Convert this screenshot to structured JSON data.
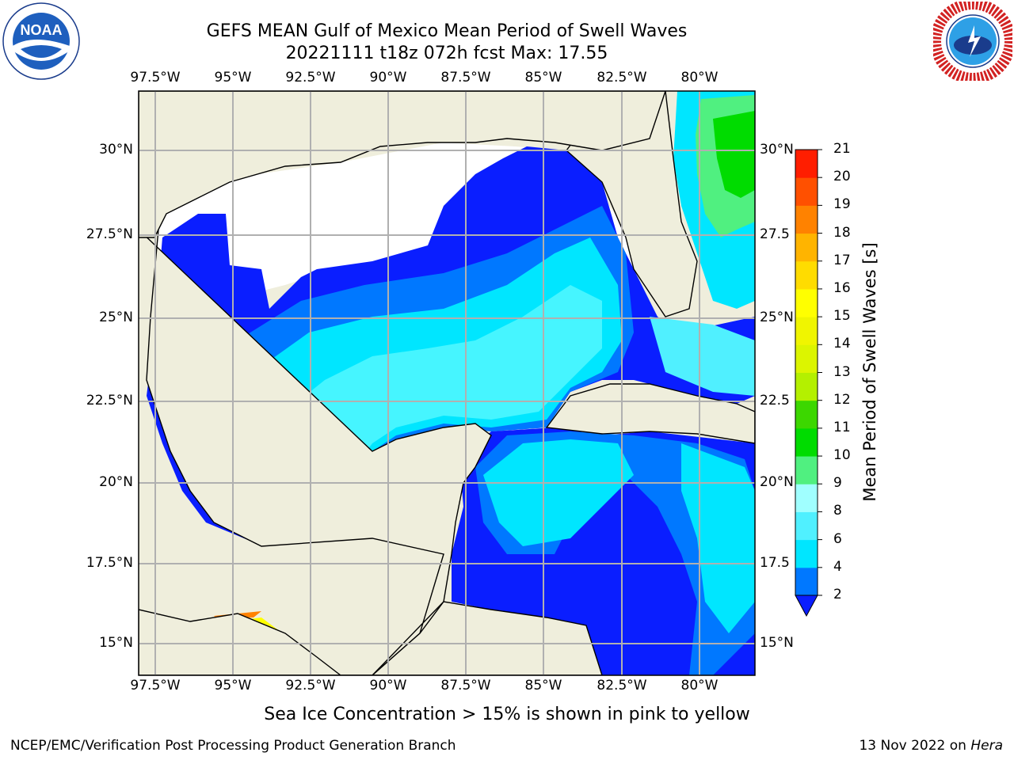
{
  "header": {
    "title_line1": "GEFS MEAN Gulf of Mexico Mean Period of Swell Waves",
    "title_line2": "20221111 t18z 072h fcst   Max: 17.55"
  },
  "logos": {
    "left": "noaa-logo",
    "right": "national-weather-service-logo"
  },
  "map": {
    "lon_ticks_top": [
      "97.5°W",
      "95°W",
      "92.5°W",
      "90°W",
      "87.5°W",
      "85°W",
      "82.5°W",
      "80°W"
    ],
    "lon_ticks_bottom": [
      "97.5°W",
      "95°W",
      "92.5°W",
      "90°W",
      "87.5°W",
      "85°W",
      "82.5°W",
      "80°W"
    ],
    "lat_ticks_left": [
      "30°N",
      "27.5°N",
      "25°N",
      "22.5°N",
      "20°N",
      "17.5°N",
      "15°N"
    ],
    "lat_ticks_right": [
      "30°N",
      "27.5",
      "25°N",
      "22.5",
      "20°N",
      "17.5",
      "15°N"
    ],
    "land_color": "#efeedc",
    "grid_color": "#b0b0b0"
  },
  "colorbar": {
    "title": "Mean Period of Swell Waves [s]",
    "ticks": [
      "2",
      "4",
      "6",
      "8",
      "9",
      "10",
      "11",
      "12",
      "13",
      "14",
      "15",
      "16",
      "17",
      "18",
      "19",
      "20",
      "21"
    ],
    "colors": [
      "#0078ff",
      "#00e6ff",
      "#50f0ff",
      "#a0ffff",
      "#50f080",
      "#00dc00",
      "#3cd700",
      "#b4f000",
      "#dcf500",
      "#f0f500",
      "#ffff00",
      "#ffdc00",
      "#ffb400",
      "#ff8200",
      "#ff5000",
      "#ff1e00"
    ],
    "under_color": "#0a1eff"
  },
  "chart_data": {
    "type": "heatmap",
    "title": "GEFS MEAN Gulf of Mexico Mean Period of Swell Waves",
    "subtitle": "20221111 t18z 072h fcst   Max: 17.55",
    "colorbar_label": "Mean Period of Swell Waves [s]",
    "xlim": [
      -98.0,
      -78.2
    ],
    "ylim": [
      14.0,
      31.8
    ],
    "levels": [
      2,
      4,
      6,
      8,
      9,
      10,
      11,
      12,
      13,
      14,
      15,
      16,
      17,
      18,
      19,
      20,
      21
    ],
    "max_value": 17.55
  },
  "footer": {
    "footnote": "Sea Ice Concentration > 15% is shown in pink to yellow",
    "branch": "NCEP/EMC/Verification Post Processing Product Generation Branch",
    "date": "13 Nov 2022 on",
    "machine": "Hera"
  }
}
